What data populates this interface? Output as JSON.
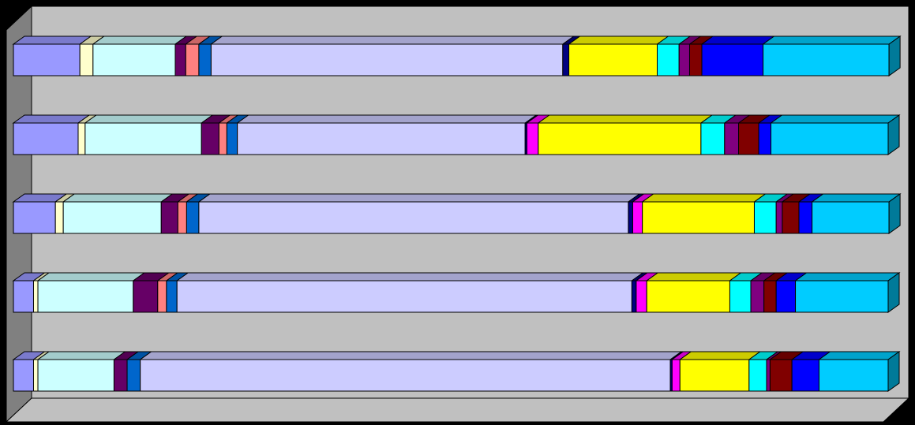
{
  "chart_data": {
    "type": "stacked-bar-3d",
    "orientation": "horizontal",
    "categories": [
      null,
      null,
      null,
      null,
      null
    ],
    "xlim": [
      0,
      100
    ],
    "series": [
      {
        "color": "#9999ff",
        "values": [
          7.6,
          7.4,
          4.8,
          2.3,
          2.3
        ]
      },
      {
        "color": "#ffffcc",
        "values": [
          1.5,
          0.8,
          0.9,
          0.5,
          0.5
        ]
      },
      {
        "color": "#ccffff",
        "values": [
          9.4,
          13.3,
          11.2,
          10.9,
          8.7
        ]
      },
      {
        "color": "#660066",
        "values": [
          1.2,
          2.0,
          1.9,
          2.8,
          1.5
        ]
      },
      {
        "color": "#ff8080",
        "values": [
          1.5,
          0.9,
          1.0,
          1.0,
          0
        ]
      },
      {
        "color": "#0066cc",
        "values": [
          1.4,
          1.2,
          1.4,
          1.2,
          1.5
        ]
      },
      {
        "color": "#ccccff",
        "values": [
          40.2,
          32.9,
          49.1,
          52.0,
          60.6
        ]
      },
      {
        "color": "#000080",
        "values": [
          0.7,
          0.2,
          0.5,
          0.5,
          0.2
        ]
      },
      {
        "color": "#ff00ff",
        "values": [
          0,
          1.3,
          1.1,
          1.2,
          0.9
        ]
      },
      {
        "color": "#ffff00",
        "values": [
          10.1,
          18.6,
          12.8,
          9.5,
          7.9
        ]
      },
      {
        "color": "#00ffff",
        "values": [
          2.5,
          2.7,
          2.5,
          2.4,
          2.0
        ]
      },
      {
        "color": "#800080",
        "values": [
          1.2,
          1.6,
          0.7,
          1.5,
          0.4
        ]
      },
      {
        "color": "#800000",
        "values": [
          1.4,
          2.3,
          1.9,
          1.4,
          2.5
        ]
      },
      {
        "color": "#0000ff",
        "values": [
          7.0,
          1.4,
          1.5,
          2.2,
          3.1
        ]
      },
      {
        "color": "#00ccff",
        "values": [
          14.4,
          13.4,
          8.8,
          10.6,
          7.9
        ]
      }
    ]
  }
}
